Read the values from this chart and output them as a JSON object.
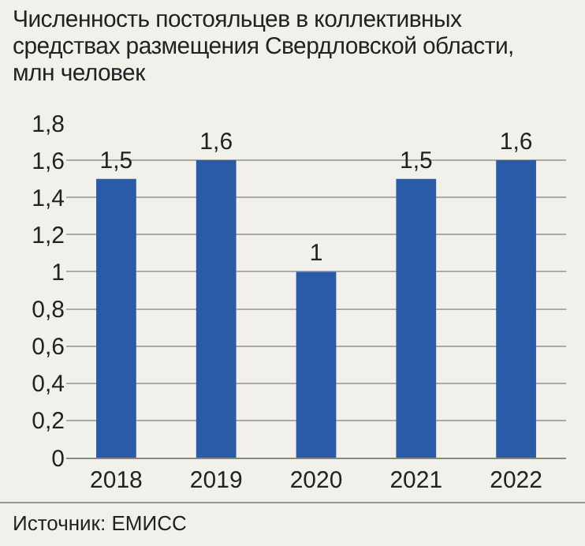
{
  "chart_data": {
    "type": "bar",
    "title": "Численность постояльцев в коллективных средствах размещения Свердловской области, млн человек",
    "categories": [
      "2018",
      "2019",
      "2020",
      "2021",
      "2022"
    ],
    "values": [
      1.5,
      1.6,
      1,
      1.5,
      1.6
    ],
    "value_labels": [
      "1,5",
      "1,6",
      "1",
      "1,5",
      "1,6"
    ],
    "color": "#2a5ba8",
    "ylim": [
      0,
      1.8
    ],
    "yticks": [
      0,
      {
        "value": 0.2,
        "label": "0,2"
      },
      {
        "value": 0.4,
        "label": "0,4"
      },
      {
        "value": 0.6,
        "label": "0,6"
      },
      {
        "value": 0.8,
        "label": "0,8"
      },
      1,
      {
        "value": 1.2,
        "label": "1,2"
      },
      {
        "value": 1.4,
        "label": "1,4"
      },
      {
        "value": 1.6,
        "label": "1,6"
      },
      {
        "value": 1.8,
        "label": "1,8"
      }
    ],
    "grid": "y",
    "annotations": [
      "Источник: ЕМИСС"
    ]
  }
}
